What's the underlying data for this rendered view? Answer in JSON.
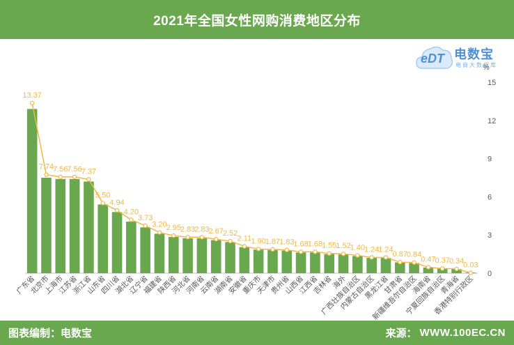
{
  "title": "2021年全国女性网购消费地区分布",
  "footer": {
    "left": "图表编制：电数宝",
    "source_label": "来源：",
    "source_url": "WWW.100EC.CN"
  },
  "logo": {
    "mark_text": "eDT",
    "brand": "电数宝",
    "tagline": "电商大数据库"
  },
  "colors": {
    "header_bg": "#6aa84f",
    "bar": "#6aa84f",
    "line": "#f0b840",
    "label": "#f0b840"
  },
  "chart_data": {
    "type": "bar",
    "unit_label": "%",
    "ylim": [
      0,
      15
    ],
    "yticks": [
      0,
      3,
      6,
      9,
      12,
      15
    ],
    "overlay_line": true,
    "categories": [
      "广东省",
      "北京市",
      "上海市",
      "江苏省",
      "浙江省",
      "山东省",
      "四川省",
      "湖北省",
      "辽宁省",
      "福建省",
      "陕西省",
      "河北省",
      "河南省",
      "云南省",
      "湖南省",
      "安徽省",
      "重庆市",
      "天津市",
      "贵州省",
      "山西省",
      "江西省",
      "吉林省",
      "海外",
      "广西壮族自治区",
      "内蒙古自治区",
      "黑龙江省",
      "甘肃省",
      "新疆维吾尔自治区",
      "海南省",
      "宁夏回族自治区",
      "青海省",
      "香港特别行政区"
    ],
    "values": [
      13.37,
      7.74,
      7.56,
      7.56,
      7.37,
      5.5,
      4.94,
      4.2,
      3.73,
      3.2,
      2.95,
      2.83,
      2.83,
      2.67,
      2.52,
      2.11,
      1.9,
      1.87,
      1.83,
      1.68,
      1.68,
      1.55,
      1.52,
      1.4,
      1.24,
      1.24,
      0.87,
      0.84,
      0.47,
      0.37,
      0.34,
      0.03
    ],
    "bar_values": [
      12.9,
      7.5,
      7.4,
      7.4,
      7.2,
      5.4,
      4.8,
      4.05,
      3.6,
      3.1,
      2.85,
      2.75,
      2.75,
      2.6,
      2.45,
      2.05,
      1.85,
      1.82,
      1.78,
      1.63,
      1.63,
      1.5,
      1.47,
      1.35,
      1.2,
      1.2,
      0.85,
      0.8,
      0.45,
      0.35,
      0.32,
      0.05
    ],
    "value_labels": [
      "13.37",
      "7.74",
      "7.56",
      "7.56",
      "7.37",
      "5.50",
      "4.94",
      "4.20",
      "3.73",
      "3.20",
      "2.95",
      "2.83",
      "2.83",
      "2.67",
      "2.52",
      "2.11",
      "1.90",
      "1.87",
      "1.83",
      "1.68",
      "1.68",
      "1.55",
      "1.52",
      "1.40",
      "1.24",
      "1.24",
      "0.87",
      "0.84",
      "0.47",
      "0.37",
      "0.34",
      "0.03"
    ]
  }
}
